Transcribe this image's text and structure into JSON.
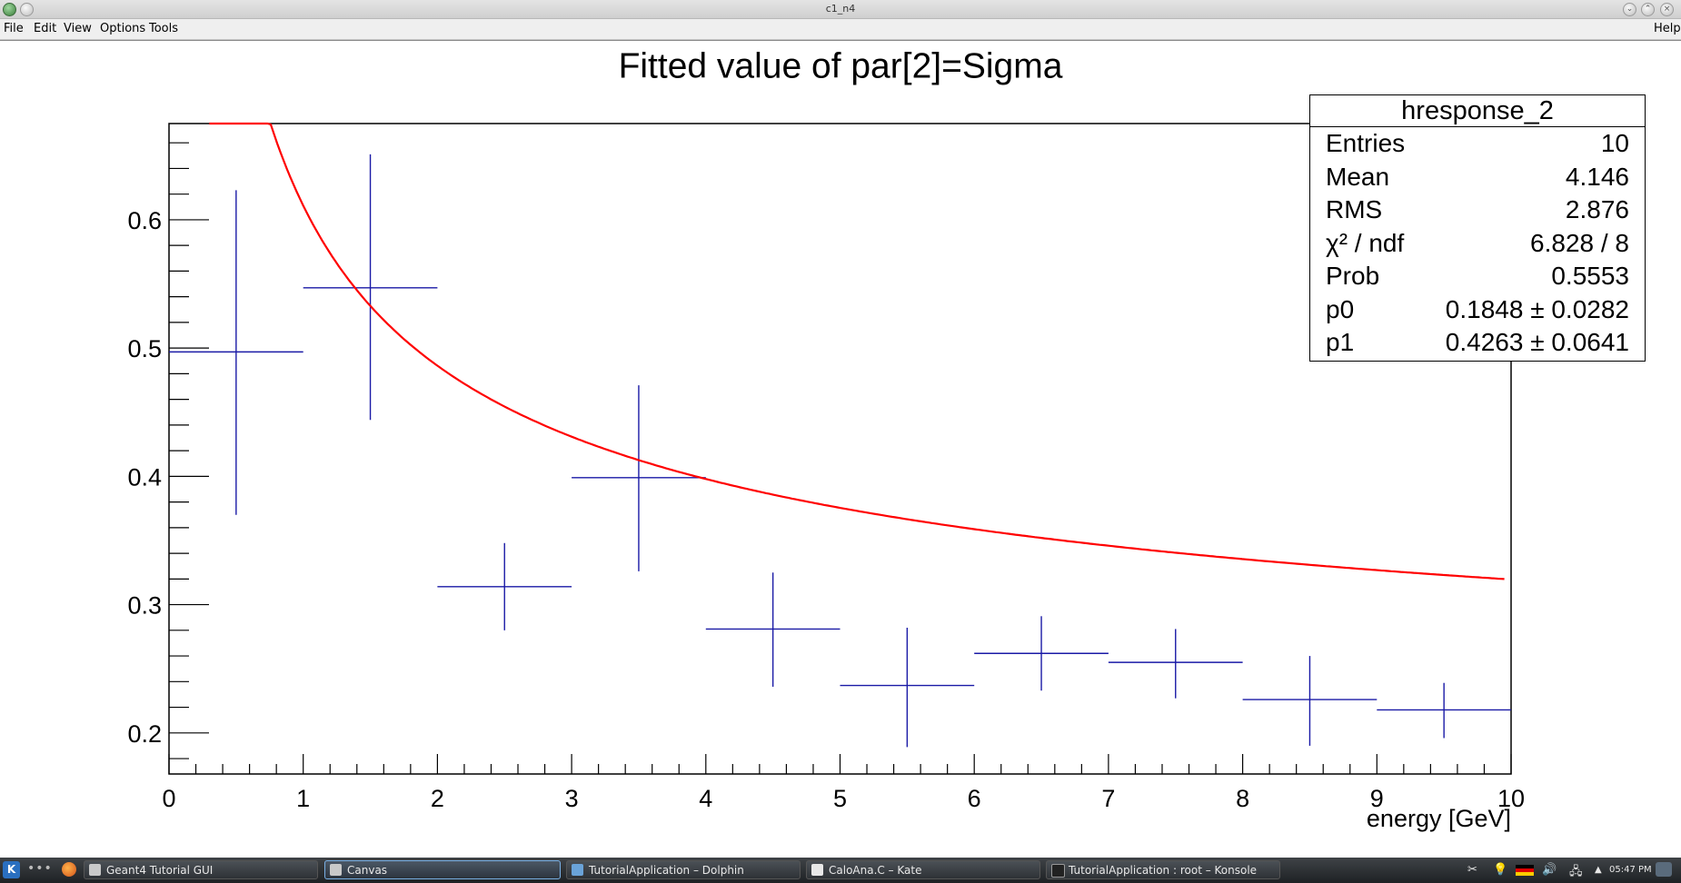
{
  "window": {
    "title": "c1_n4",
    "help_label": "Help"
  },
  "menu": {
    "items": [
      "File",
      "Edit",
      "View",
      "Options",
      "Tools"
    ]
  },
  "chart_data": {
    "type": "scatter",
    "title": "Fitted value of par[2]=Sigma",
    "xlabel": "energy [GeV]",
    "ylabel": "",
    "xlim": [
      0,
      10
    ],
    "ylim": [
      0.168,
      0.675
    ],
    "x_ticks": [
      "0",
      "1",
      "2",
      "3",
      "4",
      "5",
      "6",
      "7",
      "8",
      "9",
      "10"
    ],
    "y_ticks": [
      "0.2",
      "0.3",
      "0.4",
      "0.5",
      "0.6"
    ],
    "series": [
      {
        "x": [
          0.5,
          1.5,
          2.5,
          3.5,
          4.5,
          5.5,
          6.5,
          7.5,
          8.5,
          9.5
        ],
        "xerr": [
          0.5,
          0.5,
          0.5,
          0.5,
          0.5,
          0.5,
          0.5,
          0.5,
          0.5,
          0.5
        ],
        "y": [
          0.497,
          0.547,
          0.314,
          0.399,
          0.281,
          0.237,
          0.262,
          0.255,
          0.226,
          0.218
        ],
        "yerr_low": [
          0.127,
          0.103,
          0.034,
          0.073,
          0.045,
          0.048,
          0.029,
          0.028,
          0.036,
          0.022
        ],
        "yerr_high": [
          0.126,
          0.104,
          0.034,
          0.072,
          0.044,
          0.045,
          0.029,
          0.026,
          0.034,
          0.021
        ],
        "color": "#1a1aa6"
      }
    ],
    "fit": {
      "color": "#ff0000",
      "p0": 0.1848,
      "p1": 0.4263,
      "x_range": [
        0.3,
        9.95
      ]
    },
    "grid": false,
    "legend": "top-right"
  },
  "statbox": {
    "title": "hresponse_2",
    "rows": [
      {
        "key": "Entries",
        "value": "10"
      },
      {
        "key": "Mean",
        "value": "4.146"
      },
      {
        "key": "RMS",
        "value": "2.876"
      },
      {
        "key": "χ² / ndf",
        "value": "6.828 / 8"
      },
      {
        "key": "Prob",
        "value": "0.5553"
      },
      {
        "key": "p0",
        "value": "0.1848 ± 0.0282"
      },
      {
        "key": "p1",
        "value": "0.4263 ± 0.0641"
      }
    ]
  },
  "taskbar": {
    "tasks": [
      {
        "label": "Geant4 Tutorial GUI",
        "icon": "geant4-icon"
      },
      {
        "label": "Canvas",
        "icon": "root-canvas-icon",
        "active": true
      },
      {
        "label": "TutorialApplication – Dolphin",
        "icon": "dolphin-icon"
      },
      {
        "label": "CaloAna.C – Kate",
        "icon": "kate-icon"
      },
      {
        "label": "TutorialApplication : root – Konsole",
        "icon": "konsole-icon"
      }
    ],
    "clock": "05:47 PM"
  }
}
